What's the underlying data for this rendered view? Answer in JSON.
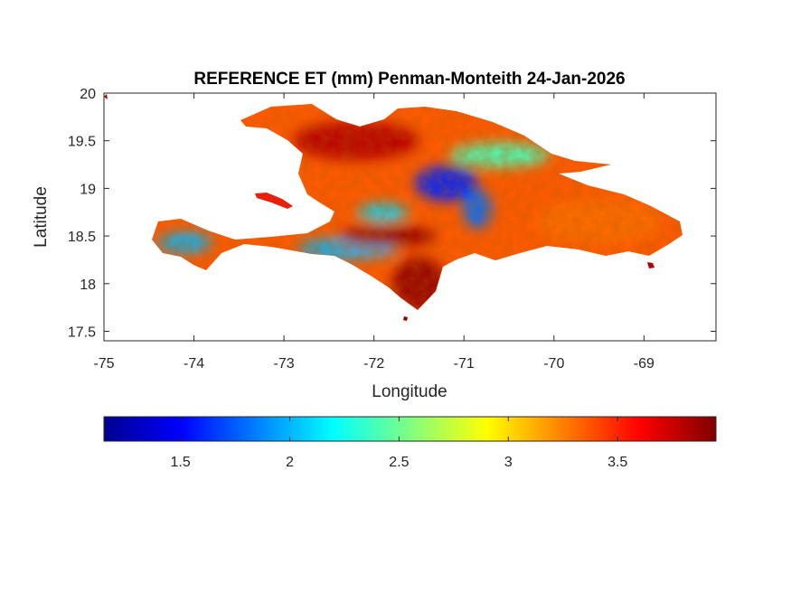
{
  "chart_data": {
    "type": "heatmap",
    "title": "REFERENCE ET (mm) Penman-Monteith 24-Jan-2026",
    "xlabel": "Longitude",
    "ylabel": "Latitude",
    "xlim": [
      -75,
      -68.2
    ],
    "ylim": [
      17.4,
      20
    ],
    "x_ticks": [
      -75,
      -74,
      -73,
      -72,
      -71,
      -70,
      -69
    ],
    "x_tick_labels": [
      "-75",
      "-74",
      "-73",
      "-72",
      "-71",
      "-70",
      "-69"
    ],
    "y_ticks": [
      17.5,
      18,
      18.5,
      19,
      19.5,
      20
    ],
    "y_tick_labels": [
      "17.5",
      "18",
      "18.5",
      "19",
      "19.5",
      "20"
    ],
    "colormap": "jet",
    "colorbar": {
      "orientation": "horizontal",
      "location": "bottom",
      "range": [
        1.15,
        3.95
      ],
      "ticks": [
        1.5,
        2,
        2.5,
        3,
        3.5
      ],
      "tick_labels": [
        "1.5",
        "2",
        "2.5",
        "3",
        "3.5"
      ],
      "colors": [
        "#00008f",
        "#0000ff",
        "#00ffff",
        "#ffff00",
        "#ff0000",
        "#800000"
      ]
    },
    "grid": false,
    "regions": [
      {
        "name": "",
        "lon": -74.1,
        "lat": 18.43,
        "value": 2.0
      },
      {
        "name": "",
        "lon": -72.3,
        "lat": 18.37,
        "value": 2.0
      },
      {
        "name": "",
        "lon": -71.2,
        "lat": 19.05,
        "value": 1.6
      },
      {
        "name": "",
        "lon": -71.9,
        "lat": 18.75,
        "value": 2.1
      },
      {
        "name": "",
        "lon": -70.85,
        "lat": 18.78,
        "value": 1.8
      },
      {
        "name": "",
        "lon": -70.6,
        "lat": 19.35,
        "value": 2.4
      },
      {
        "name": "",
        "lon": -72.2,
        "lat": 19.5,
        "value": 3.8
      },
      {
        "name": "",
        "lon": -71.85,
        "lat": 18.5,
        "value": 3.9
      },
      {
        "name": "",
        "lon": -69.5,
        "lat": 18.65,
        "value": 3.3
      },
      {
        "name": "",
        "lon": -71.5,
        "lat": 18.0,
        "value": 3.9
      }
    ]
  }
}
